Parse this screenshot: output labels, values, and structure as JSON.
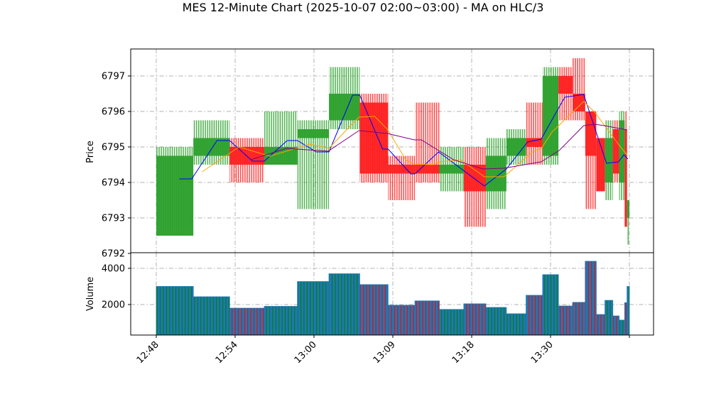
{
  "chart_data": {
    "type": "candlestick",
    "title": "MES 12-Minute Chart (2025-10-07 02:00~03:00) - MA on HLC/3",
    "price_panel": {
      "ylabel": "Price",
      "ylim": [
        6792,
        6797.75
      ],
      "yticks": [
        6792,
        6793,
        6794,
        6795,
        6796,
        6797
      ]
    },
    "volume_panel": {
      "ylabel": "Volume",
      "ylim": [
        314,
        4600
      ],
      "yticks": [
        2000,
        4000
      ]
    },
    "xaxis": {
      "unit": "bar index",
      "xlim": [
        -3.3,
        63
      ],
      "ticks": [
        {
          "x": 0,
          "label": "12:48"
        },
        {
          "x": 10,
          "label": "12:54"
        },
        {
          "x": 20,
          "label": "13:00"
        },
        {
          "x": 30,
          "label": "13:09"
        },
        {
          "x": 40,
          "label": "13:18"
        },
        {
          "x": 50,
          "label": "13:30"
        },
        {
          "x": 60,
          "label": ""
        }
      ]
    },
    "grid": true,
    "colors": {
      "up": "#2ca02c",
      "down": "#ff2020",
      "volume": "#1f77b4",
      "ma1": "#0000ff",
      "ma2": "#ffa500",
      "ma3": "#800080",
      "grid": "#b0b0b0"
    },
    "bars": [
      {
        "x0": 0,
        "x1": 4.7,
        "open": 6792.5,
        "high": 6795,
        "low": 6792.5,
        "close": 6794.75,
        "volume": 3000
      },
      {
        "x0": 4.7,
        "x1": 9.3,
        "open": 6794.75,
        "high": 6795.75,
        "low": 6794.5,
        "close": 6795.25,
        "volume": 2430
      },
      {
        "x0": 9.3,
        "x1": 13.7,
        "open": 6795,
        "high": 6795.25,
        "low": 6794,
        "close": 6794.5,
        "volume": 1800
      },
      {
        "x0": 13.7,
        "x1": 17.9,
        "open": 6794.5,
        "high": 6796,
        "low": 6794.5,
        "close": 6795,
        "volume": 1900
      },
      {
        "x0": 17.9,
        "x1": 21.9,
        "open": 6795.25,
        "high": 6795.75,
        "low": 6793.25,
        "close": 6795.5,
        "volume": 3270
      },
      {
        "x0": 21.9,
        "x1": 25.8,
        "open": 6795.75,
        "high": 6797.25,
        "low": 6795.5,
        "close": 6796.5,
        "volume": 3700
      },
      {
        "x0": 25.8,
        "x1": 29.4,
        "open": 6796.25,
        "high": 6796.5,
        "low": 6794,
        "close": 6794.25,
        "volume": 3100
      },
      {
        "x0": 29.4,
        "x1": 32.8,
        "open": 6794.5,
        "high": 6794.75,
        "low": 6793.5,
        "close": 6794.25,
        "volume": 1960
      },
      {
        "x0": 32.8,
        "x1": 35.9,
        "open": 6794.5,
        "high": 6796.25,
        "low": 6794,
        "close": 6794.25,
        "volume": 2200
      },
      {
        "x0": 35.9,
        "x1": 39.0,
        "open": 6794.25,
        "high": 6795,
        "low": 6793.75,
        "close": 6794.5,
        "volume": 1730
      },
      {
        "x0": 39.0,
        "x1": 41.8,
        "open": 6794.5,
        "high": 6795,
        "low": 6792.75,
        "close": 6793.75,
        "volume": 2040
      },
      {
        "x0": 41.8,
        "x1": 44.4,
        "open": 6793.75,
        "high": 6795.25,
        "low": 6793.25,
        "close": 6794.75,
        "volume": 1840
      },
      {
        "x0": 44.4,
        "x1": 46.9,
        "open": 6794.75,
        "high": 6795.5,
        "low": 6794.5,
        "close": 6795.25,
        "volume": 1490
      },
      {
        "x0": 46.9,
        "x1": 49.0,
        "open": 6795.25,
        "high": 6796.25,
        "low": 6794.5,
        "close": 6795,
        "volume": 2510
      },
      {
        "x0": 49.0,
        "x1": 51.0,
        "open": 6794.75,
        "high": 6797.25,
        "low": 6794.5,
        "close": 6797,
        "volume": 3650
      },
      {
        "x0": 51.0,
        "x1": 52.8,
        "open": 6797,
        "high": 6797.25,
        "low": 6795.75,
        "close": 6796.5,
        "volume": 1920
      },
      {
        "x0": 52.8,
        "x1": 54.4,
        "open": 6796.5,
        "high": 6797.5,
        "low": 6795.75,
        "close": 6796,
        "volume": 2120
      },
      {
        "x0": 54.4,
        "x1": 55.8,
        "open": 6796,
        "high": 6796,
        "low": 6793.25,
        "close": 6794.75,
        "volume": 4390
      },
      {
        "x0": 55.8,
        "x1": 56.9,
        "open": 6795.25,
        "high": 6795.25,
        "low": 6793.75,
        "close": 6793.75,
        "volume": 1450
      },
      {
        "x0": 56.9,
        "x1": 57.9,
        "open": 6794,
        "high": 6795.75,
        "low": 6793.5,
        "close": 6795.25,
        "volume": 2230
      },
      {
        "x0": 57.9,
        "x1": 58.7,
        "open": 6795.5,
        "high": 6795.75,
        "low": 6794,
        "close": 6794.25,
        "volume": 1370
      },
      {
        "x0": 58.7,
        "x1": 59.4,
        "open": 6794,
        "high": 6796,
        "low": 6793.5,
        "close": 6795.75,
        "volume": 1140
      },
      {
        "x0": 59.4,
        "x1": 59.7,
        "open": 6795.5,
        "high": 6796,
        "low": 6792.75,
        "close": 6792.75,
        "volume": 2100
      },
      {
        "x0": 59.7,
        "x1": 60.0,
        "open": 6793,
        "high": 6793.5,
        "low": 6792.25,
        "close": 6793.5,
        "volume": 3000
      }
    ],
    "series": [
      {
        "name": "ma1",
        "color": "#0000ff",
        "points": [
          [
            2.9,
            6794.1
          ],
          [
            4.5,
            6794.1
          ],
          [
            7.7,
            6795.18
          ],
          [
            9.3,
            6795.18
          ],
          [
            12.2,
            6794.6
          ],
          [
            13.7,
            6794.6
          ],
          [
            16.6,
            6795.18
          ],
          [
            17.9,
            6795.18
          ],
          [
            20.3,
            6794.86
          ],
          [
            21.9,
            6794.86
          ],
          [
            24.9,
            6796.46
          ],
          [
            25.8,
            6796.46
          ],
          [
            28.7,
            6794.94
          ],
          [
            29.4,
            6794.94
          ],
          [
            32.3,
            6794.24
          ],
          [
            32.8,
            6794.24
          ],
          [
            35.8,
            6794.86
          ],
          [
            41.6,
            6793.9
          ],
          [
            44.4,
            6794.38
          ],
          [
            47.1,
            6795.14
          ],
          [
            48.8,
            6795.22
          ],
          [
            51.8,
            6796.4
          ],
          [
            54.2,
            6796.48
          ],
          [
            57.1,
            6794.54
          ],
          [
            58.6,
            6794.58
          ],
          [
            59.3,
            6794.78
          ],
          [
            59.8,
            6794.66
          ]
        ]
      },
      {
        "name": "ma2",
        "color": "#ffa500",
        "points": [
          [
            5.8,
            6794.3
          ],
          [
            10.5,
            6795.0
          ],
          [
            14.4,
            6794.74
          ],
          [
            19.5,
            6795.08
          ],
          [
            21.9,
            6794.96
          ],
          [
            23.6,
            6795.36
          ],
          [
            25.7,
            6795.84
          ],
          [
            27.7,
            6795.86
          ],
          [
            29.3,
            6795.5
          ],
          [
            31.7,
            6794.62
          ],
          [
            32.7,
            6794.52
          ],
          [
            35.1,
            6794.5
          ],
          [
            36,
            6794.58
          ],
          [
            38.6,
            6794.64
          ],
          [
            41.6,
            6794.16
          ],
          [
            44.1,
            6794.16
          ],
          [
            47.7,
            6794.86
          ],
          [
            48.9,
            6794.98
          ],
          [
            50.2,
            6795.42
          ],
          [
            54.2,
            6796.28
          ],
          [
            55.6,
            6795.98
          ],
          [
            58.8,
            6795.02
          ],
          [
            59.7,
            6794.78
          ]
        ]
      },
      {
        "name": "ma3",
        "color": "#800080",
        "points": [
          [
            12,
            6794.64
          ],
          [
            16.5,
            6794.96
          ],
          [
            21.8,
            6794.88
          ],
          [
            25.7,
            6795.46
          ],
          [
            29.3,
            6795.38
          ],
          [
            32.7,
            6795.2
          ],
          [
            33.6,
            6795.2
          ],
          [
            37.7,
            6794.64
          ],
          [
            41.4,
            6794.38
          ],
          [
            44.1,
            6794.4
          ],
          [
            48.8,
            6794.58
          ],
          [
            51.1,
            6794.9
          ],
          [
            54.2,
            6795.6
          ],
          [
            55.6,
            6795.64
          ],
          [
            56.8,
            6795.6
          ],
          [
            59.7,
            6795.48
          ]
        ]
      }
    ]
  }
}
